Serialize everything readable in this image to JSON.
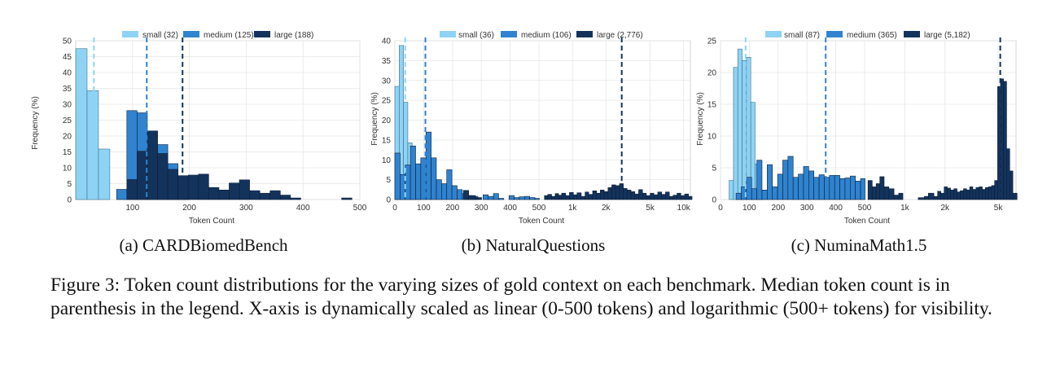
{
  "colors": {
    "small": "#8fd3f4",
    "medium": "#2f83cf",
    "large": "#14335c",
    "small_median": "#8fd3f4",
    "medium_median": "#2f83cf",
    "large_median": "#14335c"
  },
  "charts": [
    {
      "subcaption": "(a) CARDBiomedBench",
      "legend": [
        "small (32)",
        "medium (125)",
        "large (188)"
      ],
      "xlabel": "Token Count",
      "ylabel": "Frequency (%)"
    },
    {
      "subcaption": "(b) NaturalQuestions",
      "legend": [
        "small (36)",
        "medium (106)",
        "large (2,776)"
      ],
      "xlabel": "Token Count",
      "ylabel": "Frequency (%)"
    },
    {
      "subcaption": "(c) NuminaMath1.5",
      "legend": [
        "small (87)",
        "medium (365)",
        "large (5,182)"
      ],
      "xlabel": "Token Count",
      "ylabel": "Frequency (%)"
    }
  ],
  "caption": "Figure 3: Token count distributions for the varying sizes of gold context on each benchmark. Median token count is in parenthesis in the legend. X-axis is dynamically scaled as linear (0-500 tokens) and logarithmic (500+ tokens) for visibility.",
  "chart_data": [
    {
      "type": "bar",
      "title": "(a) CARDBiomedBench",
      "xlabel": "Token Count",
      "ylabel": "Frequency (%)",
      "xlim": [
        0,
        500
      ],
      "ylim": [
        0,
        50
      ],
      "x_ticks": [
        "100",
        "200",
        "300",
        "400",
        "500"
      ],
      "y_ticks": [
        0,
        5,
        10,
        15,
        20,
        25,
        30,
        35,
        40,
        45,
        50
      ],
      "series": [
        {
          "name": "small (32)",
          "bin_width": 20,
          "bins": [
            [
              0,
              47.5
            ],
            [
              20,
              34.3
            ],
            [
              40,
              15.9
            ]
          ]
        },
        {
          "name": "medium (125)",
          "bin_width": 18,
          "bins": [
            [
              72,
              3.2
            ],
            [
              90,
              28.0
            ],
            [
              108,
              27.3
            ],
            [
              126,
              21.5
            ],
            [
              144,
              17.3
            ],
            [
              162,
              11.3
            ],
            [
              180,
              7.5
            ]
          ]
        },
        {
          "name": "large (188)",
          "bin_width": 18,
          "bins": [
            [
              90,
              6.3
            ],
            [
              108,
              15.2
            ],
            [
              126,
              21.6
            ],
            [
              144,
              14.5
            ],
            [
              162,
              9.5
            ],
            [
              180,
              7.5
            ],
            [
              198,
              7.7
            ],
            [
              216,
              8.0
            ],
            [
              234,
              3.8
            ],
            [
              252,
              3.0
            ],
            [
              270,
              5.2
            ],
            [
              288,
              6.2
            ],
            [
              306,
              2.8
            ],
            [
              324,
              2.0
            ],
            [
              342,
              2.8
            ],
            [
              360,
              1.4
            ],
            [
              378,
              0.5
            ],
            [
              468,
              0.5
            ]
          ]
        }
      ],
      "medians": {
        "small": 32,
        "medium": 125,
        "large": 188
      },
      "grid": true,
      "legend_position": "top"
    },
    {
      "type": "bar",
      "title": "(b) NaturalQuestions",
      "xlabel": "Token Count",
      "ylabel": "Frequency (%)",
      "x_scale": "linear 0-500, log 500+",
      "ylim": [
        0,
        40
      ],
      "x_ticks": [
        "0",
        "100",
        "200",
        "300",
        "400",
        "500",
        "1k",
        "2k",
        "5k",
        "10k"
      ],
      "y_ticks": [
        0,
        5,
        10,
        15,
        20,
        25,
        30,
        35,
        40
      ],
      "series": [
        {
          "name": "small (36)",
          "bin_width": 15,
          "bins": [
            [
              0,
              28.5
            ],
            [
              15,
              38.8
            ],
            [
              30,
              24.5
            ],
            [
              45,
              14.3
            ],
            [
              60,
              2.3
            ],
            [
              75,
              1.0
            ]
          ]
        },
        {
          "name": "medium (106)",
          "bin_width": 18,
          "bins": [
            [
              0,
              11.7
            ],
            [
              18,
              6.3
            ],
            [
              36,
              8.7
            ],
            [
              54,
              13.5
            ],
            [
              72,
              9.0
            ],
            [
              90,
              10.5
            ],
            [
              108,
              17.0
            ],
            [
              126,
              10.5
            ],
            [
              144,
              5.0
            ],
            [
              162,
              4.0
            ],
            [
              180,
              7.5
            ],
            [
              198,
              3.5
            ],
            [
              216,
              2.5
            ],
            [
              234,
              1.5
            ],
            [
              252,
              1.0
            ],
            [
              270,
              0.8
            ],
            [
              306,
              1.2
            ],
            [
              324,
              0.8
            ],
            [
              342,
              1.5
            ],
            [
              360,
              0.3
            ],
            [
              396,
              1.0
            ],
            [
              414,
              0.5
            ],
            [
              432,
              0.7
            ],
            [
              450,
              0.8
            ],
            [
              468,
              0.5
            ],
            [
              486,
              0.3
            ]
          ]
        },
        {
          "name": "large (2,776)",
          "bin_width_note": "log bins",
          "bins": [
            [
              238,
              2.3
            ],
            [
              256,
              1.0
            ],
            [
              280,
              0.5
            ],
            [
              560,
              1.0
            ],
            [
              600,
              1.3
            ],
            [
              650,
              0.8
            ],
            [
              700,
              1.5
            ],
            [
              750,
              1.1
            ],
            [
              800,
              1.6
            ],
            [
              870,
              1.0
            ],
            [
              940,
              1.8
            ],
            [
              1020,
              1.2
            ],
            [
              1100,
              1.7
            ],
            [
              1200,
              0.8
            ],
            [
              1300,
              1.9
            ],
            [
              1400,
              1.3
            ],
            [
              1520,
              2.2
            ],
            [
              1650,
              1.6
            ],
            [
              1780,
              2.4
            ],
            [
              1930,
              2.0
            ],
            [
              2090,
              3.0
            ],
            [
              2260,
              3.7
            ],
            [
              2450,
              3.5
            ],
            [
              2650,
              4.0
            ],
            [
              2870,
              2.8
            ],
            [
              3100,
              2.4
            ],
            [
              3360,
              2.0
            ],
            [
              3640,
              1.4
            ],
            [
              3940,
              2.5
            ],
            [
              4270,
              1.6
            ],
            [
              4620,
              1.0
            ],
            [
              5000,
              1.6
            ],
            [
              5400,
              1.2
            ],
            [
              5850,
              1.9
            ],
            [
              6350,
              1.3
            ],
            [
              6870,
              1.9
            ],
            [
              7440,
              0.8
            ],
            [
              8050,
              1.1
            ],
            [
              8720,
              1.6
            ],
            [
              9440,
              1.0
            ],
            [
              10220,
              1.4
            ],
            [
              11070,
              0.8
            ]
          ]
        }
      ],
      "medians": {
        "small": 36,
        "medium": 106,
        "large": 2776
      },
      "grid": true,
      "legend_position": "top"
    },
    {
      "type": "bar",
      "title": "(c) NuminaMath1.5",
      "xlabel": "Token Count",
      "ylabel": "Frequency (%)",
      "x_scale": "linear 0-500, log 500+",
      "ylim": [
        0,
        25
      ],
      "x_ticks": [
        "0",
        "100",
        "200",
        "300",
        "400",
        "500",
        "1k",
        "2k",
        "5k"
      ],
      "y_ticks": [
        0,
        5,
        10,
        15,
        20,
        25
      ],
      "series": [
        {
          "name": "small (87)",
          "bin_width": 15,
          "bins": [
            [
              30,
              3.0
            ],
            [
              45,
              20.8
            ],
            [
              60,
              23.7
            ],
            [
              75,
              21.9
            ],
            [
              90,
              22.4
            ],
            [
              105,
              15.3
            ],
            [
              120,
              5.6
            ],
            [
              135,
              0.7
            ]
          ]
        },
        {
          "name": "medium (365)",
          "bin_width": 18,
          "bins": [
            [
              54,
              1.0
            ],
            [
              72,
              2.0
            ],
            [
              90,
              3.5
            ],
            [
              108,
              1.7
            ],
            [
              126,
              6.2
            ],
            [
              144,
              1.5
            ],
            [
              162,
              5.5
            ],
            [
              180,
              2.0
            ],
            [
              198,
              4.0
            ],
            [
              216,
              6.2
            ],
            [
              234,
              6.8
            ],
            [
              252,
              3.5
            ],
            [
              270,
              4.0
            ],
            [
              288,
              5.2
            ],
            [
              306,
              4.5
            ],
            [
              324,
              3.5
            ],
            [
              342,
              3.9
            ],
            [
              360,
              3.5
            ],
            [
              378,
              3.8
            ],
            [
              396,
              3.8
            ],
            [
              414,
              3.3
            ],
            [
              432,
              3.4
            ],
            [
              450,
              3.7
            ],
            [
              468,
              2.9
            ],
            [
              486,
              3.3
            ]
          ]
        },
        {
          "name": "large (5,182)",
          "bin_width_note": "log bins",
          "bins": [
            [
              530,
              3.0
            ],
            [
              570,
              2.0
            ],
            [
              610,
              2.5
            ],
            [
              650,
              3.6
            ],
            [
              700,
              2.0
            ],
            [
              760,
              1.7
            ],
            [
              830,
              0.7
            ],
            [
              900,
              1.0
            ],
            [
              1260,
              0.3
            ],
            [
              1400,
              0.5
            ],
            [
              1500,
              1.0
            ],
            [
              1650,
              0.5
            ],
            [
              1760,
              1.3
            ],
            [
              1860,
              1.0
            ],
            [
              1970,
              2.0
            ],
            [
              2080,
              1.8
            ],
            [
              2200,
              1.5
            ],
            [
              2330,
              1.7
            ],
            [
              2460,
              1.2
            ],
            [
              2600,
              1.4
            ],
            [
              2750,
              1.7
            ],
            [
              2900,
              1.5
            ],
            [
              3060,
              2.0
            ],
            [
              3230,
              1.6
            ],
            [
              3410,
              1.9
            ],
            [
              3600,
              2.0
            ],
            [
              3800,
              1.6
            ],
            [
              4010,
              1.9
            ],
            [
              4230,
              2.0
            ],
            [
              4460,
              2.2
            ],
            [
              4700,
              3.0
            ],
            [
              4950,
              17.8
            ],
            [
              5200,
              19.0
            ],
            [
              5480,
              18.6
            ],
            [
              5780,
              8.0
            ],
            [
              6100,
              4.5
            ],
            [
              6440,
              1.0
            ]
          ]
        }
      ],
      "medians": {
        "small": 87,
        "medium": 365,
        "large": 5182
      },
      "grid": true,
      "legend_position": "top"
    }
  ]
}
